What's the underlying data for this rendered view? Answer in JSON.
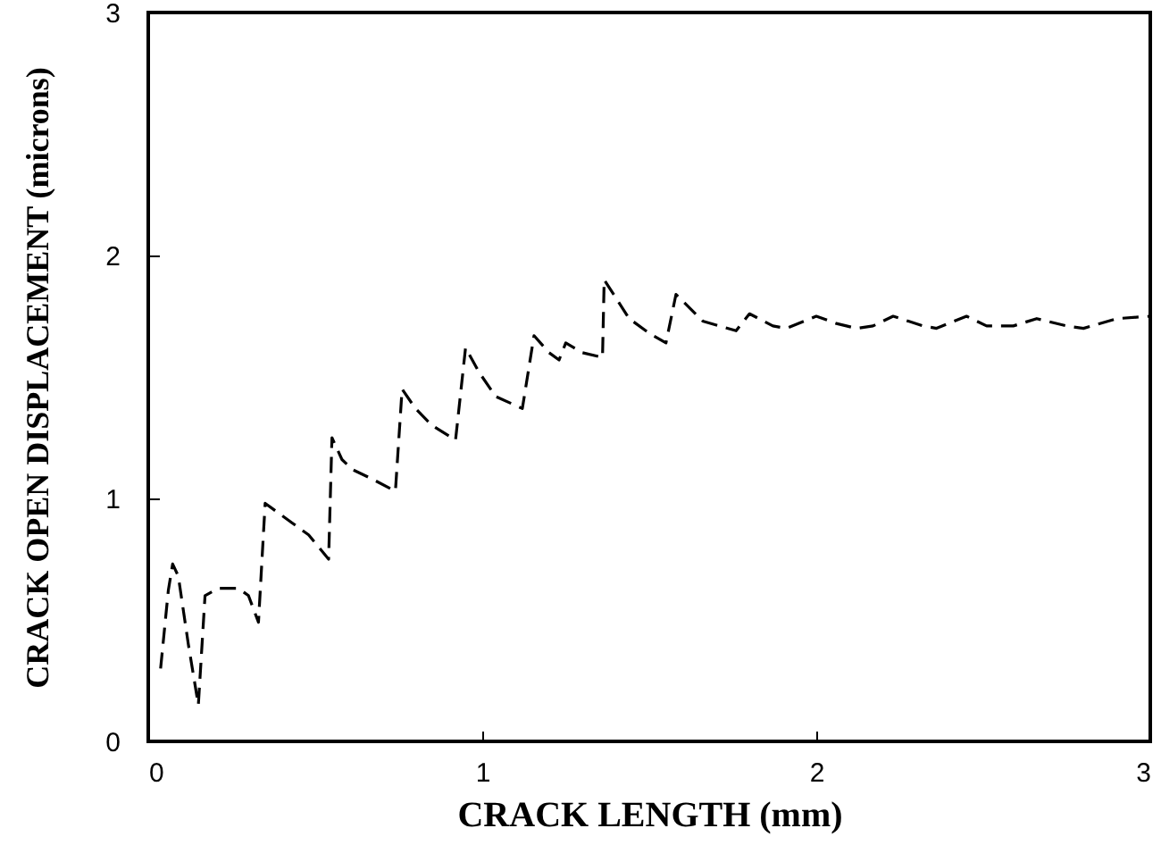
{
  "chart_data": {
    "type": "line",
    "xlabel": "CRACK LENGTH (mm)",
    "ylabel": "CRACK OPEN DISPLACEMENT (microns)",
    "x": [
      0.037,
      0.06,
      0.073,
      0.09,
      0.12,
      0.15,
      0.17,
      0.21,
      0.27,
      0.3,
      0.33,
      0.35,
      0.43,
      0.48,
      0.54,
      0.55,
      0.58,
      0.61,
      0.67,
      0.74,
      0.76,
      0.8,
      0.85,
      0.92,
      0.95,
      0.99,
      1.04,
      1.12,
      1.155,
      1.2,
      1.23,
      1.25,
      1.3,
      1.36,
      1.365,
      1.44,
      1.5,
      1.55,
      1.58,
      1.66,
      1.76,
      1.8,
      1.87,
      1.91,
      2.0,
      2.06,
      2.12,
      2.17,
      2.23,
      2.32,
      2.36,
      2.45,
      2.51,
      2.59,
      2.66,
      2.75,
      2.8,
      2.9,
      3.0
    ],
    "values": [
      0.3,
      0.62,
      0.73,
      0.68,
      0.4,
      0.15,
      0.6,
      0.63,
      0.63,
      0.6,
      0.49,
      0.98,
      0.9,
      0.85,
      0.75,
      1.25,
      1.16,
      1.12,
      1.08,
      1.03,
      1.45,
      1.37,
      1.3,
      1.24,
      1.62,
      1.52,
      1.42,
      1.37,
      1.67,
      1.6,
      1.57,
      1.64,
      1.6,
      1.58,
      1.9,
      1.74,
      1.68,
      1.64,
      1.84,
      1.73,
      1.69,
      1.76,
      1.71,
      1.7,
      1.75,
      1.72,
      1.7,
      1.71,
      1.75,
      1.71,
      1.7,
      1.75,
      1.71,
      1.71,
      1.74,
      1.71,
      1.7,
      1.74,
      1.75
    ],
    "color": "#000000",
    "line_style": "dashed",
    "xlim": [
      0,
      3
    ],
    "ylim": [
      0,
      3
    ],
    "xticks": [
      0,
      1,
      2,
      3
    ],
    "yticks": [
      0,
      1,
      2,
      3
    ],
    "grid": false
  }
}
